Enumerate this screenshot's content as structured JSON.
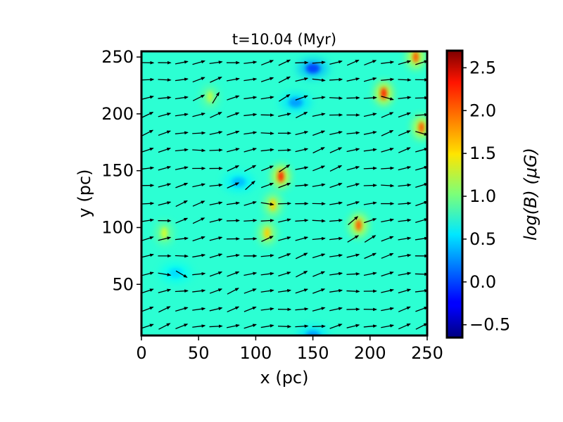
{
  "chart_data": {
    "type": "heatmap",
    "title": "t=10.04 (Myr)",
    "xlabel": "x (pc)",
    "ylabel": "y (pc)",
    "xlim": [
      0,
      250
    ],
    "ylim": [
      5,
      255
    ],
    "xticks": [
      0,
      50,
      100,
      150,
      200,
      250
    ],
    "yticks": [
      50,
      100,
      150,
      200,
      250
    ],
    "colormap": "jet",
    "colorbar": {
      "label": "log(B) (μG)",
      "range": [
        -0.65,
        2.7
      ],
      "ticks": [
        -0.5,
        0.0,
        0.5,
        1.0,
        1.5,
        2.0,
        2.5
      ],
      "tick_labels": [
        "−0.5",
        "0.0",
        "0.5",
        "1.0",
        "1.5",
        "2.0",
        "2.5"
      ]
    },
    "background_level": 0.75,
    "features": [
      {
        "kind": "filament",
        "x": 122,
        "y": 145,
        "level": 2.2
      },
      {
        "kind": "filament",
        "x": 115,
        "y": 120,
        "level": 1.6
      },
      {
        "kind": "filament",
        "x": 110,
        "y": 95,
        "level": 1.6
      },
      {
        "kind": "filament",
        "x": 190,
        "y": 102,
        "level": 2.0
      },
      {
        "kind": "filament",
        "x": 212,
        "y": 218,
        "level": 2.2
      },
      {
        "kind": "filament",
        "x": 245,
        "y": 188,
        "level": 2.0
      },
      {
        "kind": "filament",
        "x": 240,
        "y": 250,
        "level": 2.0
      },
      {
        "kind": "filament",
        "x": 20,
        "y": 95,
        "level": 1.3
      },
      {
        "kind": "filament",
        "x": 60,
        "y": 215,
        "level": 1.2
      },
      {
        "kind": "void",
        "x": 150,
        "y": 240,
        "level": 0.0
      },
      {
        "kind": "void",
        "x": 135,
        "y": 210,
        "level": 0.3
      },
      {
        "kind": "void",
        "x": 85,
        "y": 140,
        "level": 0.4
      },
      {
        "kind": "void",
        "x": 30,
        "y": 60,
        "level": 0.5
      },
      {
        "kind": "void",
        "x": 150,
        "y": 5,
        "level": 0.3
      }
    ],
    "vector_field": {
      "grid_x": [
        5,
        20,
        35,
        50,
        65,
        80,
        95,
        110,
        125,
        140,
        155,
        170,
        185,
        200,
        215,
        230,
        245
      ],
      "grid_y": [
        13,
        28,
        44,
        59,
        75,
        90,
        106,
        121,
        137,
        152,
        168,
        183,
        199,
        214,
        230,
        245
      ],
      "mean_direction_deg": 12,
      "description": "mostly uniform magnetic field pointing right and slightly upward, with local deviations near filaments"
    }
  }
}
